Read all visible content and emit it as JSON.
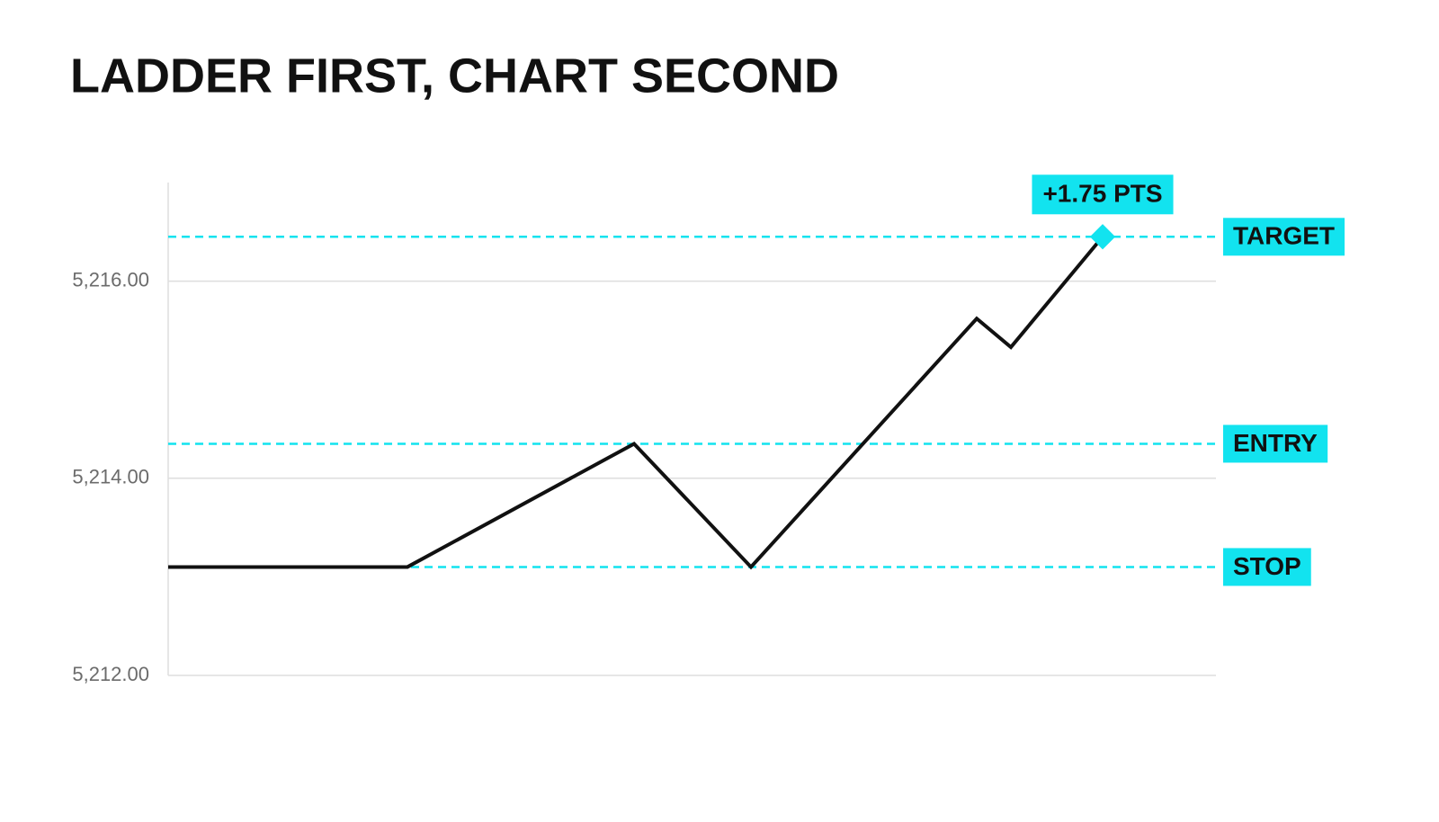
{
  "chart_data": {
    "type": "line",
    "title": "LADDER FIRST, CHART SECOND",
    "x": [
      0,
      266,
      518,
      648,
      899,
      937,
      1039
    ],
    "xlim": [
      0,
      1165
    ],
    "series": [
      {
        "color": "#111111",
        "values": [
          5213.1,
          5213.1,
          5214.35,
          5213.1,
          5215.62,
          5215.33,
          5216.45
        ]
      }
    ],
    "ylim": [
      5212,
      5217
    ],
    "yticks": [
      {
        "value": 5212,
        "label": "5,212.00"
      },
      {
        "value": 5214,
        "label": "5,214.00"
      },
      {
        "value": 5216,
        "label": "5,216.00"
      }
    ],
    "grid": true,
    "levels": [
      {
        "label": "TARGET",
        "value": 5216.45
      },
      {
        "label": "ENTRY",
        "value": 5214.35
      },
      {
        "label": "STOP",
        "value": 5213.1
      }
    ],
    "level_color": "#12e3ef",
    "annotation": "+1.75 PTS"
  }
}
